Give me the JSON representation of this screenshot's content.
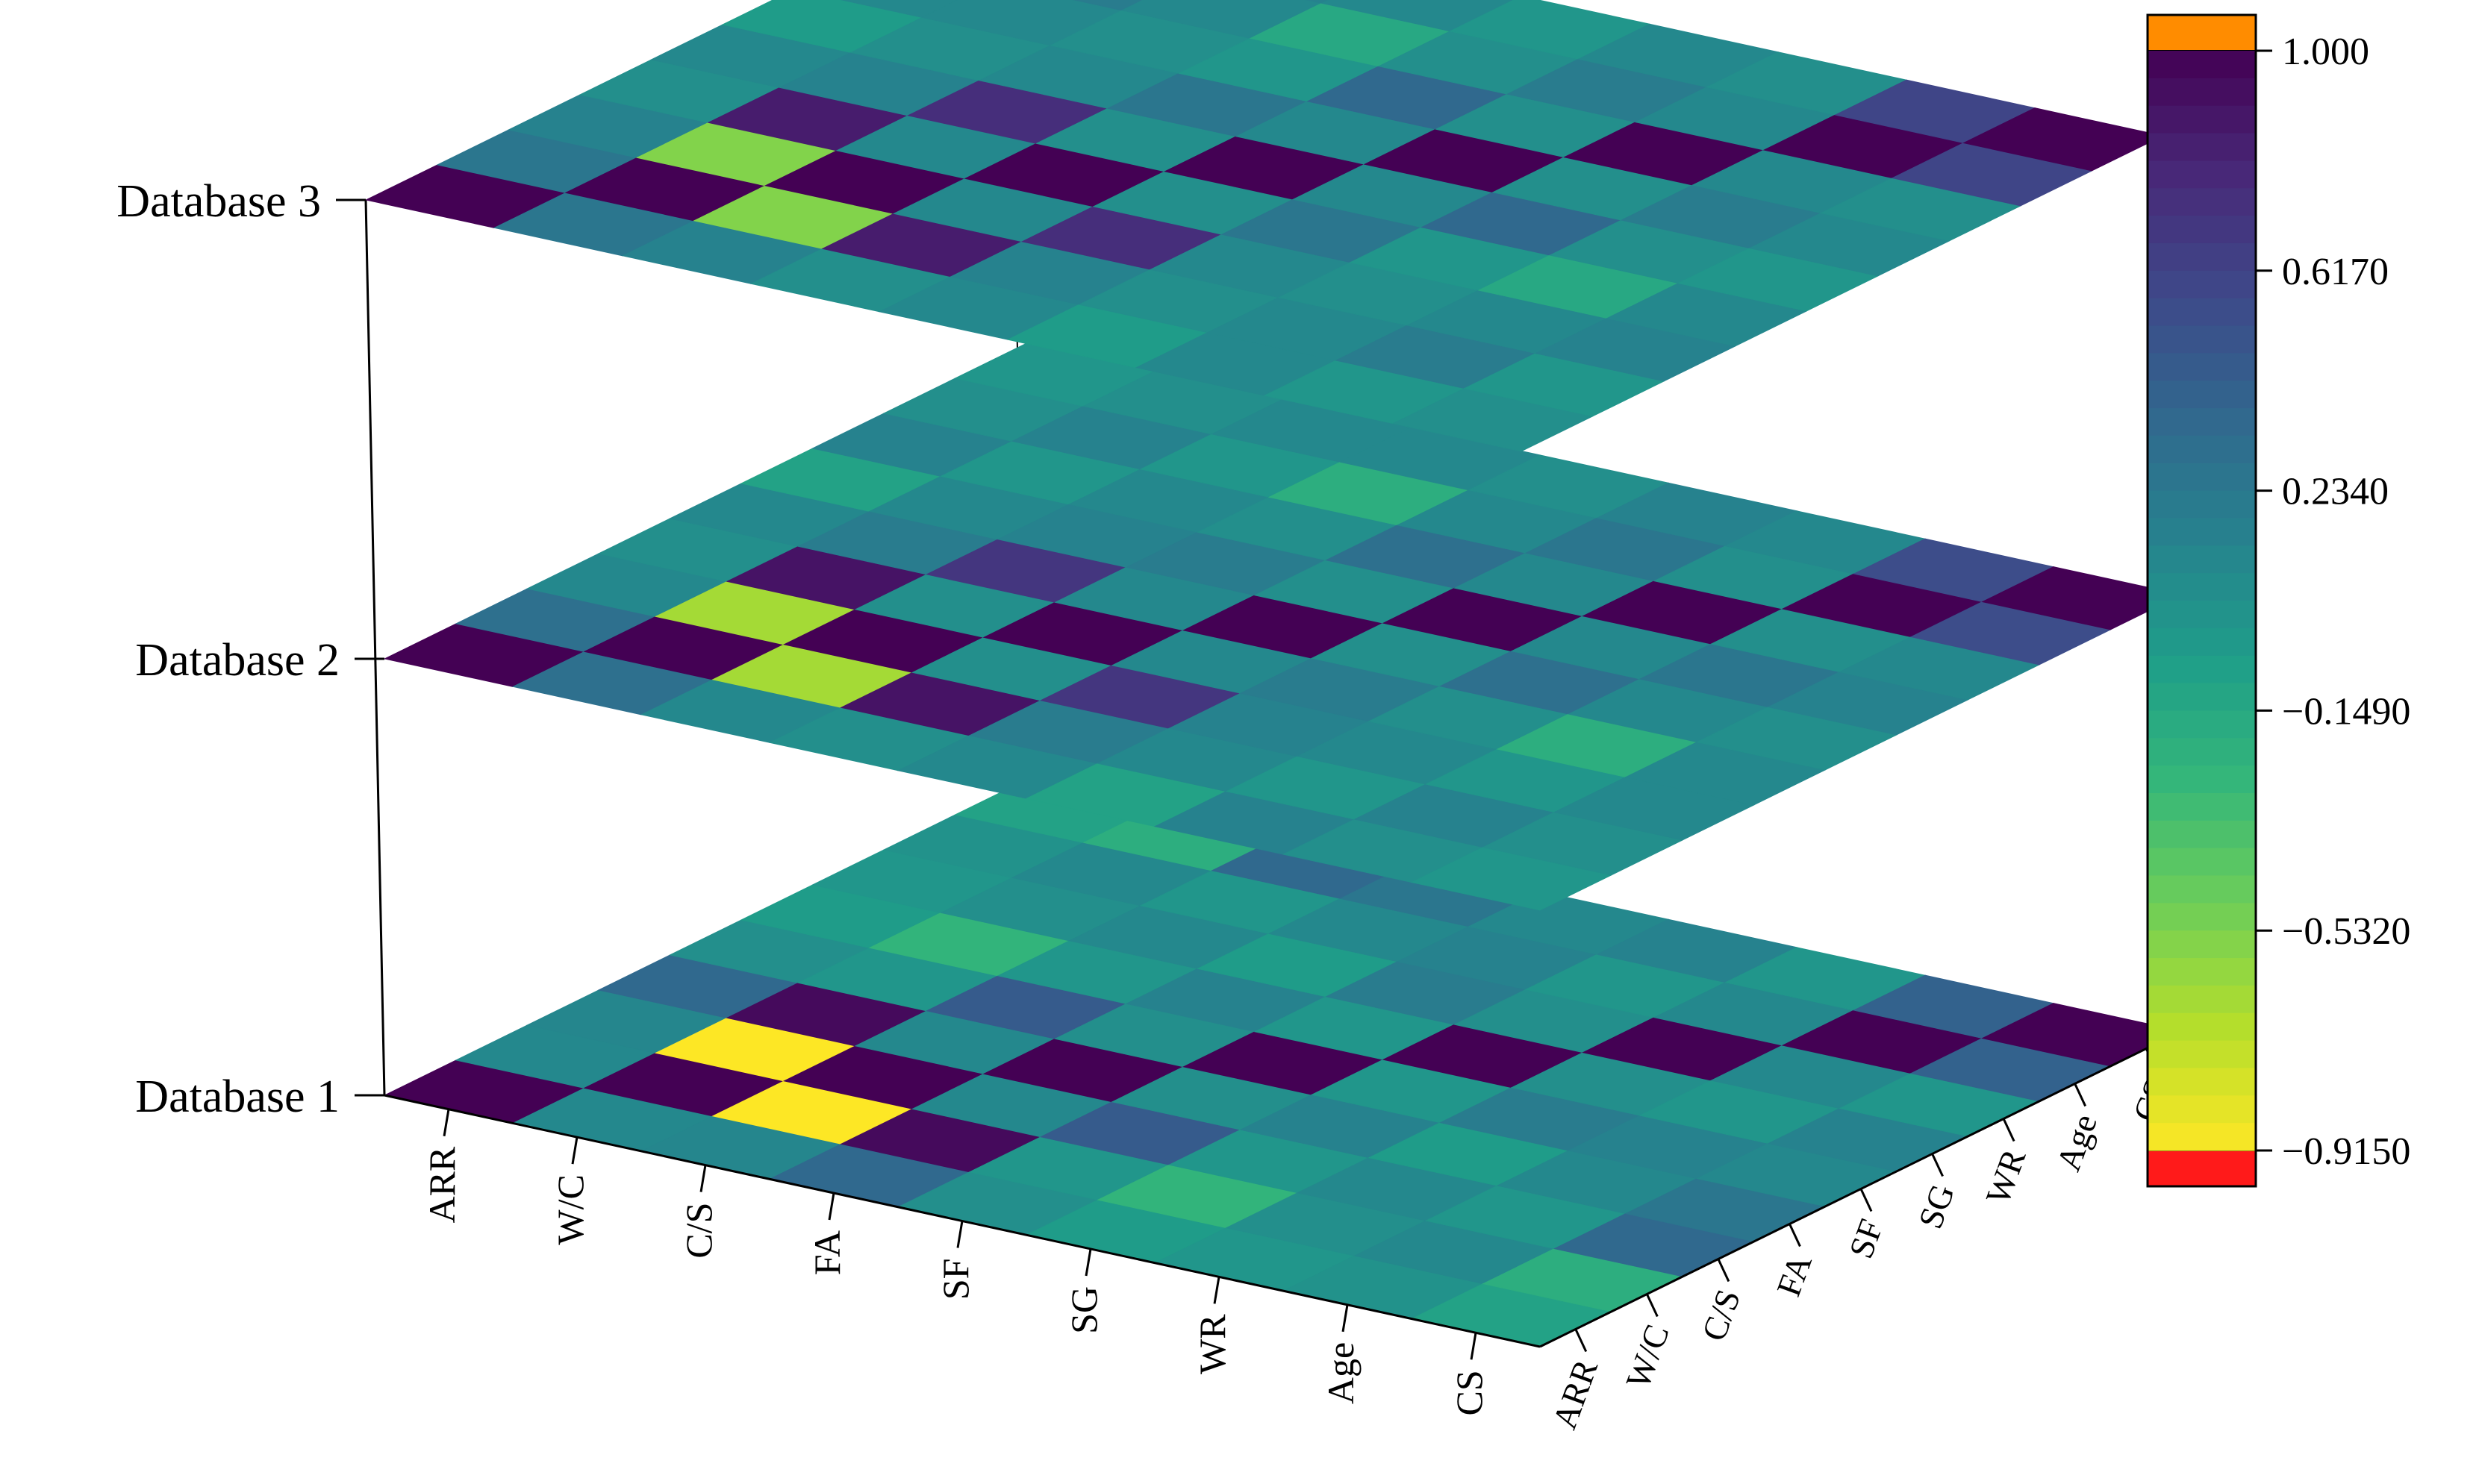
{
  "chart_data": {
    "type": "heatmap",
    "title": "",
    "variables": [
      "ARR",
      "W/C",
      "C/S",
      "FA",
      "SF",
      "SG",
      "WR",
      "Age",
      "CS"
    ],
    "layers": [
      {
        "label": "Database 1",
        "matrix": [
          [
            1.0,
            0.1,
            0.12,
            0.35,
            0.05,
            -0.05,
            0.0,
            0.03,
            -0.1
          ],
          [
            0.1,
            1.0,
            -0.95,
            0.95,
            0.0,
            -0.25,
            0.05,
            0.1,
            -0.2
          ],
          [
            0.12,
            -0.95,
            1.0,
            0.1,
            0.45,
            0.0,
            0.1,
            0.0,
            0.35
          ],
          [
            0.35,
            0.95,
            0.1,
            1.0,
            0.05,
            0.15,
            -0.05,
            0.1,
            0.25
          ],
          [
            0.05,
            0.0,
            0.45,
            0.05,
            1.0,
            0.0,
            0.2,
            0.15,
            0.1
          ],
          [
            -0.05,
            -0.25,
            0.0,
            0.15,
            0.0,
            1.0,
            0.05,
            0.0,
            0.15
          ],
          [
            0.0,
            0.05,
            0.1,
            -0.05,
            0.2,
            0.05,
            1.0,
            0.1,
            0.0
          ],
          [
            0.03,
            0.1,
            0.0,
            0.1,
            0.15,
            0.0,
            0.1,
            1.0,
            0.4
          ],
          [
            -0.1,
            -0.2,
            0.35,
            0.25,
            0.1,
            0.15,
            0.0,
            0.4,
            1.0
          ]
        ]
      },
      {
        "label": "Database 2",
        "matrix": [
          [
            1.0,
            0.3,
            0.1,
            0.05,
            0.1,
            -0.1,
            0.15,
            0.05,
            0.0
          ],
          [
            0.3,
            1.0,
            -0.65,
            0.9,
            0.2,
            0.1,
            0.0,
            0.15,
            0.05
          ],
          [
            0.1,
            -0.65,
            1.0,
            0.05,
            0.7,
            0.15,
            0.1,
            0.0,
            0.1
          ],
          [
            0.05,
            0.9,
            0.05,
            1.0,
            0.1,
            0.2,
            0.05,
            -0.2,
            0.1
          ],
          [
            0.1,
            0.2,
            0.7,
            0.1,
            1.0,
            0.05,
            0.3,
            0.1,
            0.05
          ],
          [
            -0.1,
            0.1,
            0.15,
            0.2,
            0.05,
            1.0,
            0.1,
            0.25,
            0.15
          ],
          [
            0.15,
            0.0,
            0.1,
            0.05,
            0.3,
            0.1,
            1.0,
            0.05,
            0.1
          ],
          [
            0.05,
            0.15,
            0.0,
            -0.2,
            0.1,
            0.25,
            0.05,
            1.0,
            0.55
          ],
          [
            0.0,
            0.05,
            0.1,
            0.1,
            0.05,
            0.15,
            0.1,
            0.55,
            1.0
          ]
        ]
      },
      {
        "label": "Database 3",
        "matrix": [
          [
            1.0,
            0.25,
            0.15,
            0.05,
            0.1,
            -0.05,
            0.1,
            0.0,
            0.05
          ],
          [
            0.25,
            1.0,
            -0.55,
            0.85,
            0.15,
            0.05,
            0.1,
            0.2,
            0.0
          ],
          [
            0.15,
            -0.55,
            1.0,
            0.1,
            0.75,
            0.1,
            0.05,
            0.1,
            0.15
          ],
          [
            0.05,
            0.85,
            0.1,
            1.0,
            0.05,
            0.25,
            0.0,
            -0.15,
            0.1
          ],
          [
            0.1,
            0.15,
            0.75,
            0.05,
            1.0,
            0.1,
            0.35,
            0.05,
            0.0
          ],
          [
            -0.05,
            0.05,
            0.1,
            0.25,
            0.1,
            1.0,
            0.05,
            0.2,
            0.1
          ],
          [
            0.1,
            0.1,
            0.05,
            0.0,
            0.35,
            0.05,
            1.0,
            0.1,
            0.05
          ],
          [
            0.0,
            0.2,
            0.1,
            -0.15,
            0.05,
            0.2,
            0.1,
            1.0,
            0.6
          ],
          [
            0.05,
            0.0,
            0.15,
            0.1,
            0.0,
            0.1,
            0.05,
            0.6,
            1.0
          ]
        ]
      }
    ],
    "colorbar": {
      "range": [
        -1.0,
        1.1
      ],
      "ticks": [
        1.0,
        0.617,
        0.234,
        -0.149,
        -0.532,
        -0.915
      ],
      "tick_labels": [
        "1.000",
        "0.6170",
        "0.2340",
        "−0.1490",
        "−0.5320",
        "−0.9150"
      ],
      "over_color": "#ff8c00",
      "under_color": "#ff1a1a",
      "palette": [
        "#440154",
        "#482878",
        "#3e4989",
        "#31688e",
        "#26828e",
        "#1f9e89",
        "#35b779",
        "#6ece58",
        "#b5de2b",
        "#fde725"
      ]
    }
  }
}
